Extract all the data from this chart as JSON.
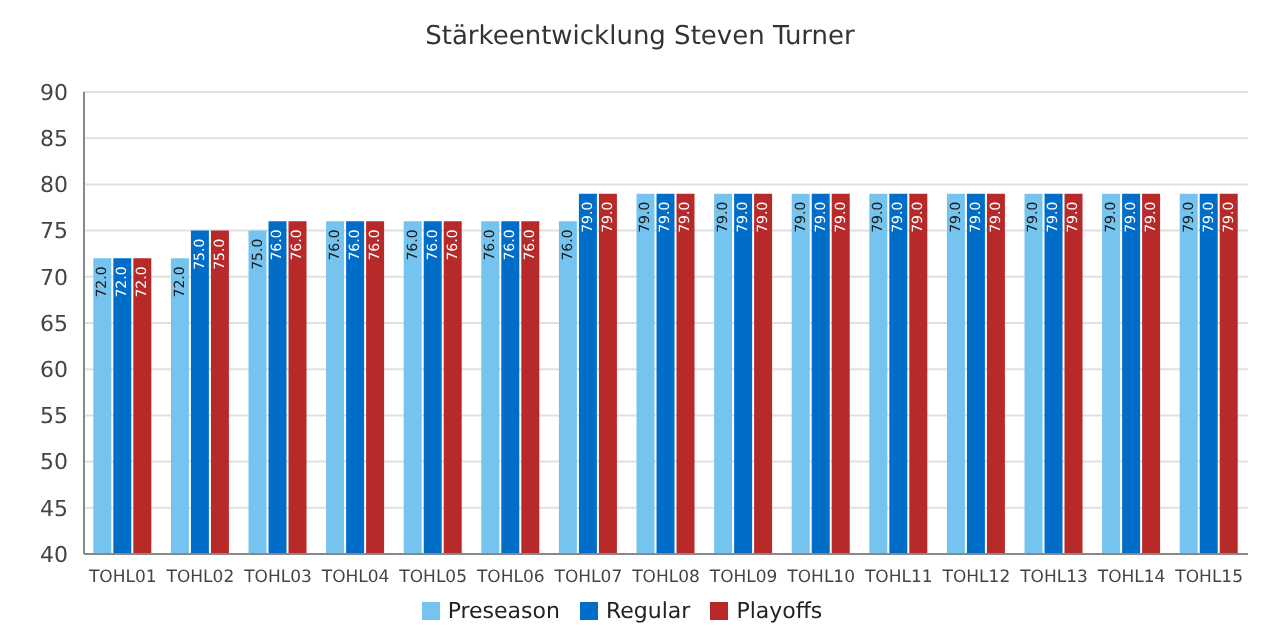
{
  "chart_data": {
    "type": "bar",
    "title": "Stärkeentwicklung Steven Turner",
    "categories": [
      "TOHL01",
      "TOHL02",
      "TOHL03",
      "TOHL04",
      "TOHL05",
      "TOHL06",
      "TOHL07",
      "TOHL08",
      "TOHL09",
      "TOHL10",
      "TOHL11",
      "TOHL12",
      "TOHL13",
      "TOHL14",
      "TOHL15"
    ],
    "series": [
      {
        "name": "Preseason",
        "color": "#75c3ef",
        "values": [
          72,
          72,
          75,
          76,
          76,
          76,
          76,
          79,
          79,
          79,
          79,
          79,
          79,
          79,
          79
        ],
        "value_labels": [
          "72.0",
          "72.0",
          "75.0",
          "76.0",
          "76.0",
          "76.0",
          "76.0",
          "79.0",
          "79.0",
          "79.0",
          "79.0",
          "79.0",
          "79.0",
          "79.0",
          "79.0"
        ]
      },
      {
        "name": "Regular",
        "color": "#006ec8",
        "values": [
          72,
          75,
          76,
          76,
          76,
          76,
          79,
          79,
          79,
          79,
          79,
          79,
          79,
          79,
          79
        ],
        "value_labels": [
          "72.0",
          "75.0",
          "76.0",
          "76.0",
          "76.0",
          "76.0",
          "79.0",
          "79.0",
          "79.0",
          "79.0",
          "79.0",
          "79.0",
          "79.0",
          "79.0",
          "79.0"
        ]
      },
      {
        "name": "Playoffs",
        "color": "#b8292a",
        "values": [
          72,
          75,
          76,
          76,
          76,
          76,
          79,
          79,
          79,
          79,
          79,
          79,
          79,
          79,
          79
        ],
        "value_labels": [
          "72.0",
          "75.0",
          "76.0",
          "76.0",
          "76.0",
          "76.0",
          "79.0",
          "79.0",
          "79.0",
          "79.0",
          "79.0",
          "79.0",
          "79.0",
          "79.0",
          "79.0"
        ]
      }
    ],
    "ylim": [
      40,
      90
    ],
    "yticks": [
      40,
      45,
      50,
      55,
      60,
      65,
      70,
      75,
      80,
      85,
      90
    ],
    "grid": "y",
    "legend": "bottom"
  }
}
